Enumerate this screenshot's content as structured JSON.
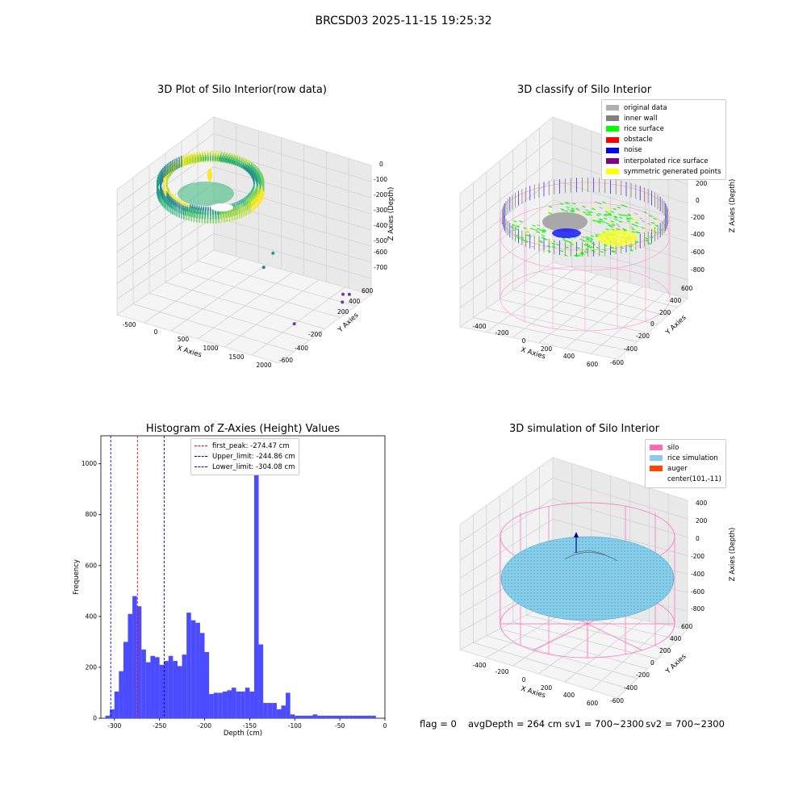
{
  "suptitle": "BRCSD03 2025-11-15 19:25:32",
  "panel1": {
    "title": "3D Plot of Silo Interior(row data)",
    "x_label": "X Axies",
    "y_label": "Y Axies",
    "z_label": "Z Axies (Depth)",
    "x_ticks": [
      "-500",
      "0",
      "500",
      "1000",
      "1500",
      "2000"
    ],
    "y_ticks": [
      "600",
      "400",
      "200",
      "-200",
      "-400",
      "-600"
    ],
    "z_ticks": [
      "0",
      "-100",
      "-200",
      "-300",
      "-400",
      "-500",
      "-600",
      "-700"
    ]
  },
  "panel2": {
    "title": "3D classify of Silo Interior",
    "x_label": "X Axies",
    "y_label": "Y Axies",
    "z_label": "Z Axies (Depth)",
    "x_ticks": [
      "-400",
      "-200",
      "0",
      "200",
      "400",
      "600"
    ],
    "y_ticks": [
      "600",
      "400",
      "200",
      "0",
      "-200",
      "-400",
      "-600"
    ],
    "z_ticks": [
      "400",
      "200",
      "0",
      "-200",
      "-400",
      "-600",
      "-800"
    ],
    "legend": [
      {
        "label": "original data",
        "color": "#b0b0b0"
      },
      {
        "label": "inner wall",
        "color": "#808080"
      },
      {
        "label": "rice surface",
        "color": "#00ff00"
      },
      {
        "label": "obstacle",
        "color": "#ff0000"
      },
      {
        "label": "noise",
        "color": "#0000ff"
      },
      {
        "label": "interpolated rice surface",
        "color": "#800080"
      },
      {
        "label": "symmetric generated points",
        "color": "#ffff00"
      }
    ]
  },
  "panel3": {
    "title": "Histogram of Z-Axies (Height) Values",
    "legend": [
      {
        "label": "first_peak: -274.47 cm",
        "color": "#ff0000"
      },
      {
        "label": "Upper_limit: -244.86 cm",
        "color": "#00008b"
      },
      {
        "label": "Lower_limit: -304.08 cm",
        "color": "#0000ff"
      }
    ],
    "x_ticks": [
      "-300",
      "-250",
      "-200",
      "-150",
      "-100",
      "-50",
      "0"
    ],
    "y_ticks": [
      "0",
      "200",
      "400",
      "600",
      "800",
      "1000"
    ]
  },
  "panel4": {
    "title": "3D simulation of Silo Interior",
    "x_label": "X Axies",
    "y_label": "Y Axies",
    "z_label": "Z Axies (Depth)",
    "x_ticks": [
      "-400",
      "-200",
      "0",
      "200",
      "400",
      "600"
    ],
    "y_ticks": [
      "600",
      "400",
      "200",
      "0",
      "-200",
      "-400",
      "-600"
    ],
    "z_ticks": [
      "400",
      "200",
      "0",
      "-200",
      "-400",
      "-600",
      "-800"
    ],
    "legend": [
      {
        "label": "silo",
        "color": "#ff69b4"
      },
      {
        "label": "rice simulation",
        "color": "#87ceeb"
      },
      {
        "label": "auger",
        "color": "#ff4500"
      },
      {
        "label": "center(101,-11)",
        "color": ""
      }
    ]
  },
  "status": {
    "flag": "flag = 0",
    "avg_depth": "avgDepth = 264 cm",
    "sv1": "sv1 = 700~2300",
    "sv2": "sv2 = 700~2300"
  },
  "chart_data": [
    {
      "type": "scatter",
      "title": "3D Plot of Silo Interior(row data)",
      "xlabel": "X Axies",
      "ylabel": "Y Axies",
      "zlabel": "Z Axies (Depth)",
      "xlim": [
        -600,
        2100
      ],
      "ylim": [
        -700,
        700
      ],
      "zlim": [
        -750,
        50
      ],
      "grid": true,
      "colormap": "viridis",
      "points": [
        {
          "x": 900,
          "y": 300,
          "z": -470
        },
        {
          "x": 800,
          "y": 250,
          "z": -560
        },
        {
          "x": 1900,
          "y": 550,
          "z": -700
        },
        {
          "x": 1850,
          "y": 500,
          "z": -690
        },
        {
          "x": 1950,
          "y": 400,
          "z": -700
        },
        {
          "x": 1700,
          "y": -100,
          "z": -720
        }
      ]
    },
    {
      "type": "scatter",
      "title": "3D classify of Silo Interior",
      "xlabel": "X Axies",
      "ylabel": "Y Axies",
      "zlabel": "Z Axies (Depth)",
      "xlim": [
        -500,
        700
      ],
      "ylim": [
        -700,
        700
      ],
      "zlim": [
        -900,
        400
      ],
      "series": [
        {
          "name": "original data",
          "color": "#b0b0b0"
        },
        {
          "name": "inner wall",
          "color": "#808080"
        },
        {
          "name": "rice surface",
          "color": "#00ff00"
        },
        {
          "name": "obstacle",
          "color": "#ff0000"
        },
        {
          "name": "noise",
          "color": "#0000ff"
        },
        {
          "name": "interpolated rice surface",
          "color": "#800080"
        },
        {
          "name": "symmetric generated points",
          "color": "#ffff00"
        }
      ],
      "legend_position": "top-right",
      "grid": true
    },
    {
      "type": "bar",
      "title": "Histogram of Z-Axies (Height) Values",
      "xlabel": "Depth (cm)",
      "ylabel": "Frequency",
      "bin_width": 5,
      "bin_starts": [
        -310,
        -305,
        -300,
        -295,
        -290,
        -285,
        -280,
        -275,
        -270,
        -265,
        -260,
        -255,
        -250,
        -245,
        -240,
        -235,
        -230,
        -225,
        -220,
        -215,
        -210,
        -205,
        -200,
        -195,
        -190,
        -185,
        -180,
        -175,
        -170,
        -165,
        -160,
        -155,
        -150,
        -145,
        -140,
        -135,
        -130,
        -125,
        -120,
        -115,
        -110,
        -105,
        -100,
        -95,
        -90,
        -85,
        -80,
        -75,
        -70,
        -65,
        -60,
        -55,
        -50,
        -45,
        -40,
        -35,
        -30,
        -25,
        -20,
        -15
      ],
      "values": [
        10,
        35,
        105,
        185,
        300,
        410,
        480,
        440,
        270,
        220,
        245,
        240,
        210,
        225,
        245,
        225,
        205,
        250,
        415,
        385,
        375,
        335,
        260,
        95,
        100,
        100,
        105,
        110,
        120,
        105,
        105,
        120,
        105,
        1060,
        290,
        60,
        60,
        60,
        35,
        50,
        100,
        15,
        10,
        10,
        10,
        10,
        15,
        10,
        10,
        10,
        10,
        10,
        10,
        10,
        10,
        10,
        10,
        10,
        10,
        10
      ],
      "xlim": [
        -315,
        0
      ],
      "ylim": [
        0,
        1110
      ],
      "vlines": [
        {
          "label": "first_peak: -274.47 cm",
          "x": -274.47,
          "color": "#ff0000"
        },
        {
          "label": "Upper_limit: -244.86 cm",
          "x": -244.86,
          "color": "#00008b"
        },
        {
          "label": "Lower_limit: -304.08 cm",
          "x": -304.08,
          "color": "#0000ff"
        }
      ],
      "bar_color": "#4b4bff",
      "legend_position": "top-center"
    },
    {
      "type": "scatter",
      "title": "3D simulation of Silo Interior",
      "xlabel": "X Axies",
      "ylabel": "Y Axies",
      "zlabel": "Z Axies (Depth)",
      "xlim": [
        -500,
        700
      ],
      "ylim": [
        -700,
        700
      ],
      "zlim": [
        -900,
        450
      ],
      "series": [
        {
          "name": "silo",
          "color": "#ff69b4"
        },
        {
          "name": "rice simulation",
          "color": "#87ceeb"
        },
        {
          "name": "auger",
          "color": "#ff4500"
        },
        {
          "name": "center(101,-11)"
        }
      ],
      "legend_position": "top-right",
      "grid": true
    }
  ]
}
